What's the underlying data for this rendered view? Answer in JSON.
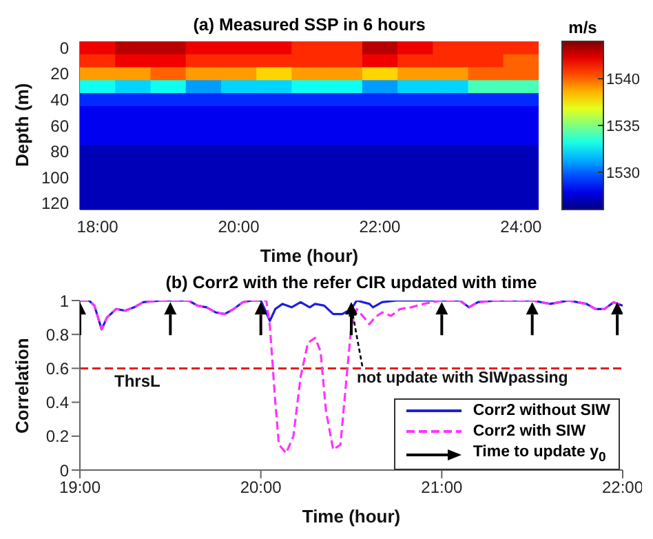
{
  "chart_data": [
    {
      "type": "heatmap",
      "title": "(a) Measured SSP in 6 hours",
      "xlabel": "Time (hour)",
      "ylabel": "Depth (m)",
      "clabel": "m/s",
      "categories": [
        "18:00",
        null,
        null,
        null,
        "20:00",
        null,
        null,
        null,
        "22:00",
        null,
        null,
        null,
        "24:00"
      ],
      "y_categories": [
        "0",
        null,
        "20",
        null,
        "40",
        null,
        "60",
        null,
        "80",
        null,
        "100",
        null,
        "120"
      ],
      "cells": [
        [
          1542,
          1543,
          1543,
          1542,
          1542,
          1542,
          1541,
          1541,
          1543,
          1542,
          1541,
          1541,
          1541
        ],
        [
          1541,
          1542,
          1542,
          1541,
          1541,
          1541,
          1541,
          1541,
          1542,
          1541,
          1541,
          1541,
          1540
        ],
        [
          1539,
          1539,
          1540,
          1539,
          1539,
          1538,
          1539,
          1539,
          1538,
          1539,
          1539,
          1540,
          1540
        ],
        [
          1533,
          1532,
          1533,
          1531,
          1532,
          1532,
          1533,
          1533,
          1531,
          1532,
          1532,
          1534,
          1534
        ],
        [
          1529,
          1529,
          1529,
          1529,
          1529,
          1529,
          1529,
          1529,
          1529,
          1529,
          1529,
          1529,
          1529
        ],
        [
          1528,
          1528,
          1528,
          1528,
          1528,
          1528,
          1528,
          1528,
          1528,
          1528,
          1528,
          1528,
          1528
        ],
        [
          1528,
          1528,
          1528,
          1528,
          1528,
          1528,
          1528,
          1528,
          1528,
          1528,
          1528,
          1528,
          1528
        ],
        [
          1528,
          1528,
          1528,
          1528,
          1528,
          1528,
          1528,
          1528,
          1528,
          1528,
          1528,
          1528,
          1528
        ],
        [
          1527,
          1527,
          1527,
          1527,
          1527,
          1527,
          1527,
          1527,
          1527,
          1527,
          1527,
          1527,
          1527
        ],
        [
          1527,
          1527,
          1527,
          1527,
          1527,
          1527,
          1527,
          1527,
          1527,
          1527,
          1527,
          1527,
          1527
        ],
        [
          1527,
          1527,
          1527,
          1527,
          1527,
          1527,
          1527,
          1527,
          1527,
          1527,
          1527,
          1527,
          1527
        ],
        [
          1527,
          1527,
          1527,
          1527,
          1527,
          1527,
          1527,
          1527,
          1527,
          1527,
          1527,
          1527,
          1527
        ],
        [
          1527,
          1527,
          1527,
          1527,
          1527,
          1527,
          1527,
          1527,
          1527,
          1527,
          1527,
          1527,
          1527
        ]
      ],
      "clim": [
        1526,
        1544
      ],
      "cticks": [
        1530,
        1535,
        1540
      ]
    },
    {
      "type": "line",
      "title": "(b) Corr2 with the refer CIR updated with time",
      "xlabel": "Time (hour)",
      "ylabel": "Correlation",
      "xlim": [
        19,
        22
      ],
      "xticks": [
        {
          "value": 19,
          "label": "19:00"
        },
        {
          "value": 20,
          "label": "20:00"
        },
        {
          "value": 21,
          "label": "21:00"
        },
        {
          "value": 22,
          "label": "22:00"
        }
      ],
      "ylim": [
        0,
        1
      ],
      "yticks": [
        0,
        0.2,
        0.4,
        0.6,
        0.8,
        1
      ],
      "legend": "bottom right",
      "series": [
        {
          "name": "Corr2 without SIW",
          "color": "#1f1fdc",
          "line_style": "solid",
          "x": [
            19.0,
            19.05,
            19.08,
            19.12,
            19.15,
            19.2,
            19.25,
            19.3,
            19.35,
            19.45,
            19.6,
            19.65,
            19.7,
            19.75,
            19.8,
            19.85,
            19.9,
            19.95,
            20.0,
            20.05,
            20.08,
            20.12,
            20.17,
            20.22,
            20.27,
            20.3,
            20.35,
            20.4,
            20.45,
            20.5,
            20.53,
            20.6,
            20.62,
            20.67,
            20.75,
            20.85,
            21.0,
            21.1,
            21.15,
            21.2,
            21.3,
            21.5,
            21.6,
            21.7,
            21.8,
            21.85,
            21.9,
            21.95,
            22.0
          ],
          "values": [
            1,
            1,
            0.97,
            0.83,
            0.9,
            0.95,
            0.94,
            0.96,
            0.99,
            1,
            1,
            0.97,
            0.96,
            0.93,
            0.92,
            0.95,
            0.99,
            1,
            1,
            0.88,
            0.95,
            0.98,
            0.96,
            0.99,
            0.96,
            0.98,
            0.97,
            0.92,
            0.92,
            0.95,
            1,
            0.98,
            0.96,
            0.99,
            1,
            1,
            1,
            1,
            0.96,
            0.99,
            1,
            1,
            0.98,
            1,
            0.98,
            0.95,
            0.95,
            0.99,
            0.97
          ]
        },
        {
          "name": "Corr2 with SIW",
          "color": "#ff33ff",
          "line_style": "dashed",
          "x": [
            19.0,
            19.05,
            19.08,
            19.12,
            19.15,
            19.2,
            19.25,
            19.3,
            19.35,
            19.45,
            19.6,
            19.65,
            19.7,
            19.75,
            19.8,
            19.85,
            19.9,
            19.95,
            20.0,
            20.03,
            20.05,
            20.08,
            20.1,
            20.14,
            20.18,
            20.22,
            20.26,
            20.3,
            20.33,
            20.36,
            20.4,
            20.44,
            20.47,
            20.5,
            20.53,
            20.57,
            20.6,
            20.63,
            20.67,
            20.72,
            20.77,
            20.83,
            20.9,
            21.0,
            21.1,
            21.15,
            21.2,
            21.3,
            21.5,
            21.6,
            21.7,
            21.8,
            21.85,
            21.9,
            21.95,
            22.0
          ],
          "values": [
            1,
            1,
            0.97,
            0.83,
            0.9,
            0.95,
            0.94,
            0.96,
            0.99,
            1,
            1,
            0.97,
            0.96,
            0.93,
            0.92,
            0.95,
            0.99,
            1,
            1,
            1,
            0.85,
            0.4,
            0.15,
            0.1,
            0.2,
            0.55,
            0.75,
            0.78,
            0.7,
            0.35,
            0.12,
            0.15,
            0.5,
            0.85,
            0.95,
            0.9,
            0.86,
            0.9,
            0.93,
            0.91,
            0.95,
            0.96,
            0.98,
            1,
            1,
            0.96,
            0.99,
            1,
            1,
            0.98,
            1,
            0.98,
            0.95,
            0.95,
            0.99,
            0.97
          ]
        },
        {
          "name": "Time to update y$_{0}$",
          "type": "scatter",
          "marker": "triangle",
          "color": "#000000",
          "x": [
            19.0,
            19.5,
            20.0,
            20.5,
            21.0,
            21.5,
            21.97
          ],
          "values": [
            0.95,
            0.95,
            0.95,
            0.95,
            0.95,
            0.95,
            0.95
          ]
        }
      ],
      "ref_lines": [
        {
          "axis": "y",
          "value": 0.6,
          "label": "ThrsL",
          "color": "#e02020",
          "line_style": "dashed"
        }
      ],
      "annotations": [
        {
          "text": "not update with SIWpassing",
          "x": 20.5,
          "y": 0.97
        }
      ]
    }
  ]
}
